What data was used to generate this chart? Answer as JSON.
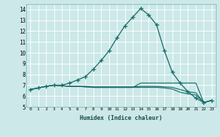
{
  "xlabel": "Humidex (Indice chaleur)",
  "xlim": [
    -0.5,
    23.5
  ],
  "ylim": [
    5,
    14.5
  ],
  "yticks": [
    5,
    6,
    7,
    8,
    9,
    10,
    11,
    12,
    13,
    14
  ],
  "xticks": [
    0,
    1,
    2,
    3,
    4,
    5,
    6,
    7,
    8,
    9,
    10,
    11,
    12,
    13,
    14,
    15,
    16,
    17,
    18,
    19,
    20,
    21,
    22,
    23
  ],
  "bg_color": "#cce8e8",
  "grid_color": "#b0d8d8",
  "line_color": "#1a6e6a",
  "lines": [
    [
      6.6,
      6.75,
      6.9,
      7.0,
      7.0,
      7.2,
      7.5,
      7.8,
      8.5,
      9.3,
      10.2,
      11.4,
      12.5,
      13.3,
      14.1,
      13.5,
      12.6,
      10.2,
      8.2,
      7.2,
      6.4,
      5.8,
      5.4,
      5.6
    ],
    [
      6.6,
      6.75,
      6.9,
      7.0,
      6.95,
      6.9,
      6.9,
      6.9,
      6.85,
      6.85,
      6.85,
      6.85,
      6.85,
      6.85,
      6.9,
      6.9,
      6.9,
      6.85,
      6.8,
      6.6,
      6.4,
      6.3,
      5.4,
      5.6
    ],
    [
      6.6,
      6.75,
      6.9,
      7.0,
      6.95,
      6.9,
      6.9,
      6.85,
      6.8,
      6.8,
      6.8,
      6.8,
      6.8,
      6.8,
      6.8,
      6.8,
      6.8,
      6.75,
      6.65,
      6.35,
      6.2,
      6.1,
      5.4,
      5.6
    ],
    [
      6.6,
      6.75,
      6.9,
      7.0,
      6.95,
      6.9,
      6.9,
      6.85,
      6.8,
      6.8,
      6.8,
      6.8,
      6.8,
      6.8,
      7.2,
      7.2,
      7.2,
      7.2,
      7.2,
      7.2,
      7.2,
      7.2,
      5.4,
      5.6
    ]
  ]
}
